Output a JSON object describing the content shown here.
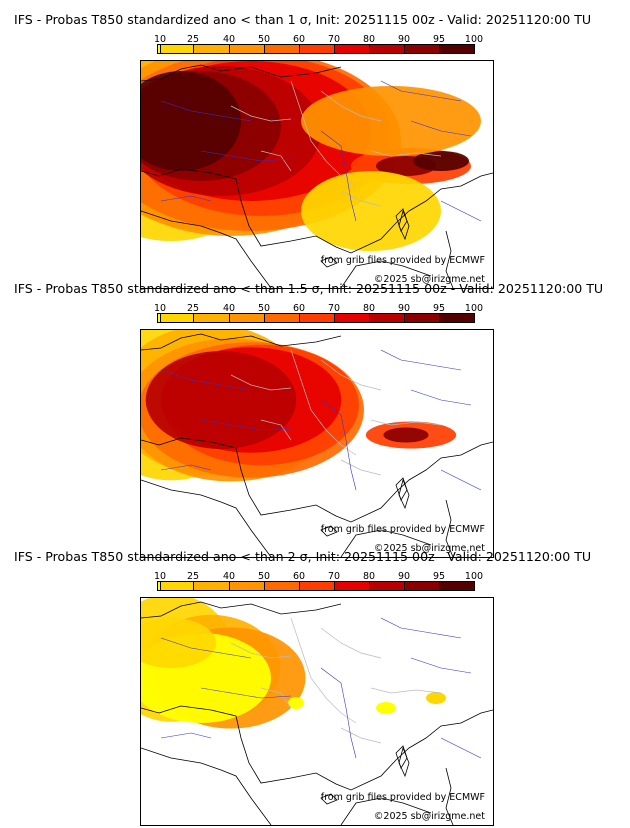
{
  "colors": {
    "p10": "#ffff00",
    "p25": "#ffd700",
    "p40": "#ffb100",
    "p50": "#ff9400",
    "p60": "#ff6a00",
    "p70": "#ff3d00",
    "p80": "#e60000",
    "p90": "#b80000",
    "p95": "#8a0000",
    "p100": "#550000",
    "coast": "#000000",
    "rivers": "#3333cc",
    "borders": "#bbbbbb"
  },
  "colorbar": {
    "ticks": [
      "10",
      "25",
      "40",
      "50",
      "60",
      "70",
      "80",
      "90",
      "95",
      "100"
    ]
  },
  "panels": [
    {
      "title": "IFS - Probas T850  standardized ano < than 1 σ, Init: 20251115 00z - Valid: 20251120:00 TU",
      "threshold_sigma": 1,
      "intensity": 1.0,
      "source": "from grib files provided by ECMWF",
      "copyright": "©2025 sb@irizgme.net"
    },
    {
      "title": "IFS - Probas T850  standardized ano < than 1.5 σ, Init: 20251115 00z - Valid: 20251120:00 TU",
      "threshold_sigma": 1.5,
      "intensity": 0.62,
      "source": "from grib files provided by ECMWF",
      "copyright": "©2025 sb@irizgme.net"
    },
    {
      "title": "IFS - Probas T850  standardized ano < than 2 σ, Init: 20251115 00z - Valid: 20251120:00 TU",
      "threshold_sigma": 2,
      "intensity": 0.28,
      "source": "from grib files provided by ECMWF",
      "copyright": "©2025 sb@irizgme.net"
    }
  ]
}
